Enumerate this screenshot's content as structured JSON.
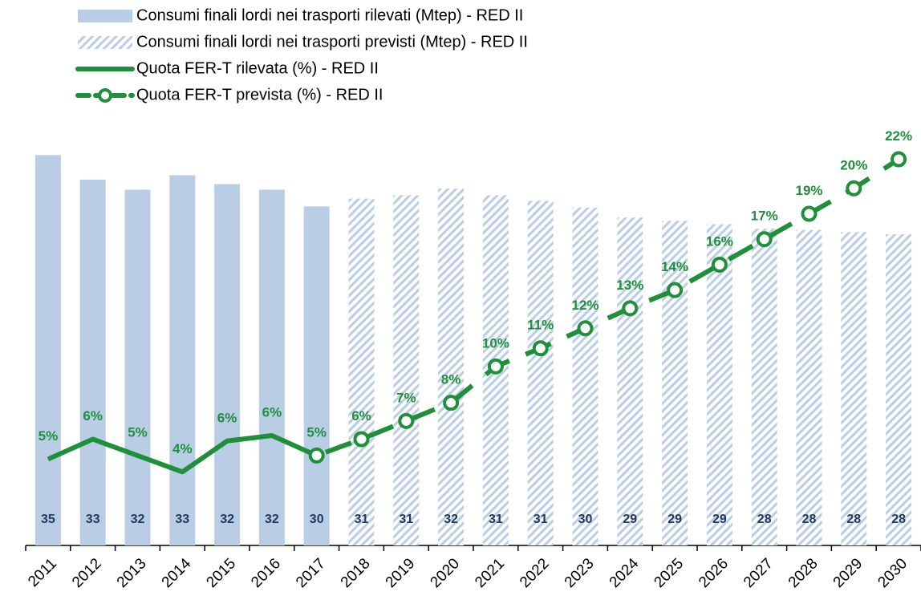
{
  "chart_data": {
    "type": "bar",
    "categories": [
      "2011",
      "2012",
      "2013",
      "2014",
      "2015",
      "2016",
      "2017",
      "2018",
      "2019",
      "2020",
      "2021",
      "2022",
      "2023",
      "2024",
      "2025",
      "2026",
      "2027",
      "2028",
      "2029",
      "2030"
    ],
    "ylim": [
      0,
      37.4
    ],
    "y2lim": [
      0,
      23.3
    ],
    "series": [
      {
        "name": "Consumi finali lordi nei trasporti rilevati (Mtep) - RED II",
        "color": "#b9cde5",
        "values": [
          35.0,
          32.8,
          31.9,
          33.2,
          32.4,
          31.9,
          30.4,
          null,
          null,
          null,
          null,
          null,
          null,
          null,
          null,
          null,
          null,
          null,
          null,
          null
        ],
        "value_labels": [
          "35",
          "33",
          "32",
          "33",
          "32",
          "32",
          "30",
          null,
          null,
          null,
          null,
          null,
          null,
          null,
          null,
          null,
          null,
          null,
          null,
          null
        ]
      },
      {
        "name": "Consumi finali lordi nei trasporti previsti (Mtep) - RED II",
        "color": "#b9cde5",
        "hatch": true,
        "values": [
          null,
          null,
          null,
          null,
          null,
          null,
          null,
          31.1,
          31.4,
          32.0,
          31.4,
          30.9,
          30.3,
          29.4,
          29.1,
          28.8,
          28.4,
          28.3,
          28.1,
          27.9
        ],
        "value_labels": [
          null,
          null,
          null,
          null,
          null,
          null,
          null,
          "31",
          "31",
          "32",
          "31",
          "31",
          "30",
          "29",
          "29",
          "29",
          "28",
          "28",
          "28",
          "28"
        ]
      },
      {
        "name": "Quota FER-T rilevata (%) - RED II",
        "type": "line",
        "axis": "y2",
        "color": "#1f8f3a",
        "values": [
          5.1,
          6.2,
          5.3,
          4.4,
          6.1,
          6.4,
          5.3,
          null,
          null,
          null,
          null,
          null,
          null,
          null,
          null,
          null,
          null,
          null,
          null,
          null
        ],
        "value_labels": [
          "5%",
          "6%",
          "5%",
          "4%",
          "6%",
          "6%",
          "5%",
          null,
          null,
          null,
          null,
          null,
          null,
          null,
          null,
          null,
          null,
          null,
          null,
          null
        ]
      },
      {
        "name": "Quota FER-T prevista (%) - RED II",
        "type": "line",
        "axis": "y2",
        "color": "#1f8f3a",
        "dashed": true,
        "marker": "circle",
        "values": [
          null,
          null,
          null,
          null,
          null,
          null,
          5.3,
          6.2,
          7.2,
          8.2,
          10.2,
          11.2,
          12.3,
          13.4,
          14.4,
          15.8,
          17.2,
          18.6,
          20.0,
          21.6
        ],
        "value_labels": [
          null,
          null,
          null,
          null,
          null,
          null,
          null,
          "6%",
          "7%",
          "8%",
          "10%",
          "11%",
          "12%",
          "13%",
          "14%",
          "16%",
          "17%",
          "19%",
          "20%",
          "22%"
        ]
      }
    ]
  }
}
